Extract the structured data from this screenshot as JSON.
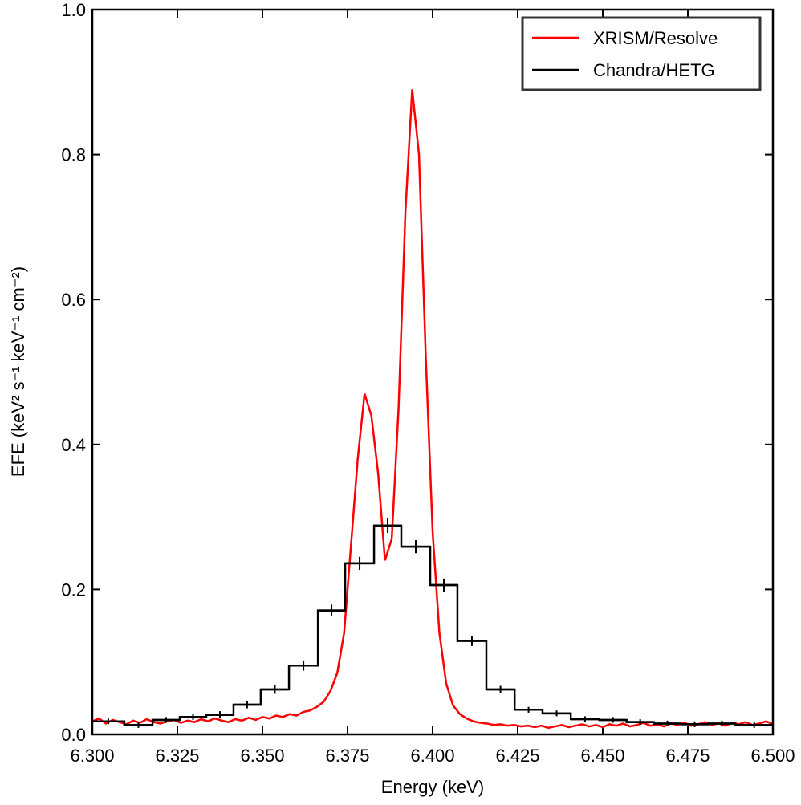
{
  "chart_data": {
    "type": "line",
    "xlabel": "Energy (keV)",
    "ylabel": "EFE (keV² s⁻¹ keV⁻¹ cm⁻²)",
    "xlim": [
      6.3,
      6.5
    ],
    "ylim": [
      0,
      1
    ],
    "xticks": [
      {
        "value": 6.3,
        "label": "6.300"
      },
      {
        "value": 6.325,
        "label": "6.325"
      },
      {
        "value": 6.35,
        "label": "6.350"
      },
      {
        "value": 6.375,
        "label": "6.375"
      },
      {
        "value": 6.4,
        "label": "6.400"
      },
      {
        "value": 6.425,
        "label": "6.425"
      },
      {
        "value": 6.45,
        "label": "6.450"
      },
      {
        "value": 6.475,
        "label": "6.475"
      },
      {
        "value": 6.5,
        "label": "6.500"
      }
    ],
    "yticks": [
      {
        "value": 0,
        "label": "0.0"
      },
      0.2,
      0.4,
      0.6,
      0.8,
      {
        "value": 1,
        "label": "1.0"
      }
    ],
    "legend": "upper right",
    "series": [
      {
        "name": "XRISM/Resolve",
        "color": "#ff0000",
        "x": [
          6.3,
          6.302,
          6.304,
          6.306,
          6.308,
          6.31,
          6.312,
          6.314,
          6.316,
          6.318,
          6.32,
          6.322,
          6.324,
          6.326,
          6.328,
          6.33,
          6.332,
          6.334,
          6.336,
          6.338,
          6.34,
          6.342,
          6.344,
          6.346,
          6.348,
          6.35,
          6.352,
          6.354,
          6.356,
          6.358,
          6.36,
          6.362,
          6.364,
          6.366,
          6.368,
          6.37,
          6.372,
          6.374,
          6.376,
          6.378,
          6.38,
          6.382,
          6.384,
          6.386,
          6.388,
          6.39,
          6.392,
          6.394,
          6.396,
          6.398,
          6.4,
          6.402,
          6.404,
          6.406,
          6.408,
          6.41,
          6.412,
          6.414,
          6.416,
          6.418,
          6.42,
          6.422,
          6.424,
          6.426,
          6.428,
          6.43,
          6.432,
          6.434,
          6.436,
          6.438,
          6.44,
          6.442,
          6.444,
          6.446,
          6.448,
          6.45,
          6.452,
          6.454,
          6.456,
          6.458,
          6.46,
          6.462,
          6.464,
          6.466,
          6.468,
          6.47,
          6.472,
          6.474,
          6.476,
          6.478,
          6.48,
          6.482,
          6.484,
          6.486,
          6.488,
          6.49,
          6.492,
          6.494,
          6.496,
          6.498,
          6.5
        ],
        "values": [
          0.018,
          0.022,
          0.015,
          0.02,
          0.017,
          0.014,
          0.019,
          0.016,
          0.021,
          0.017,
          0.015,
          0.018,
          0.02,
          0.016,
          0.019,
          0.017,
          0.021,
          0.018,
          0.022,
          0.019,
          0.017,
          0.021,
          0.019,
          0.023,
          0.02,
          0.024,
          0.022,
          0.026,
          0.024,
          0.028,
          0.026,
          0.031,
          0.033,
          0.038,
          0.045,
          0.06,
          0.085,
          0.14,
          0.26,
          0.38,
          0.47,
          0.44,
          0.36,
          0.24,
          0.27,
          0.45,
          0.72,
          0.89,
          0.8,
          0.52,
          0.28,
          0.14,
          0.07,
          0.04,
          0.028,
          0.022,
          0.018,
          0.016,
          0.015,
          0.013,
          0.014,
          0.012,
          0.013,
          0.011,
          0.012,
          0.01,
          0.012,
          0.009,
          0.011,
          0.013,
          0.01,
          0.012,
          0.014,
          0.011,
          0.013,
          0.01,
          0.014,
          0.012,
          0.015,
          0.011,
          0.013,
          0.016,
          0.012,
          0.014,
          0.011,
          0.015,
          0.013,
          0.016,
          0.012,
          0.014,
          0.017,
          0.013,
          0.015,
          0.012,
          0.016,
          0.014,
          0.017,
          0.013,
          0.015,
          0.018,
          0.014
        ]
      },
      {
        "name": "Chandra/HETG",
        "color": "#000000",
        "style": "step",
        "bins": [
          6.3,
          6.3094,
          6.3177,
          6.3257,
          6.3335,
          6.3415,
          6.3495,
          6.3578,
          6.3663,
          6.3743,
          6.3828,
          6.3908,
          6.3993,
          6.4073,
          6.4158,
          6.4241,
          6.4323,
          6.4406,
          6.449,
          6.457,
          6.465,
          6.473,
          6.481,
          6.489,
          6.5
        ],
        "values": [
          0.018,
          0.013,
          0.02,
          0.024,
          0.027,
          0.041,
          0.062,
          0.095,
          0.171,
          0.236,
          0.288,
          0.259,
          0.206,
          0.129,
          0.062,
          0.034,
          0.029,
          0.021,
          0.02,
          0.017,
          0.015,
          0.014,
          0.015,
          0.013
        ],
        "errors": [
          0.004,
          0.004,
          0.004,
          0.004,
          0.005,
          0.005,
          0.006,
          0.007,
          0.008,
          0.009,
          0.01,
          0.009,
          0.009,
          0.007,
          0.005,
          0.004,
          0.004,
          0.004,
          0.004,
          0.004,
          0.004,
          0.004,
          0.004,
          0.004
        ]
      }
    ]
  }
}
